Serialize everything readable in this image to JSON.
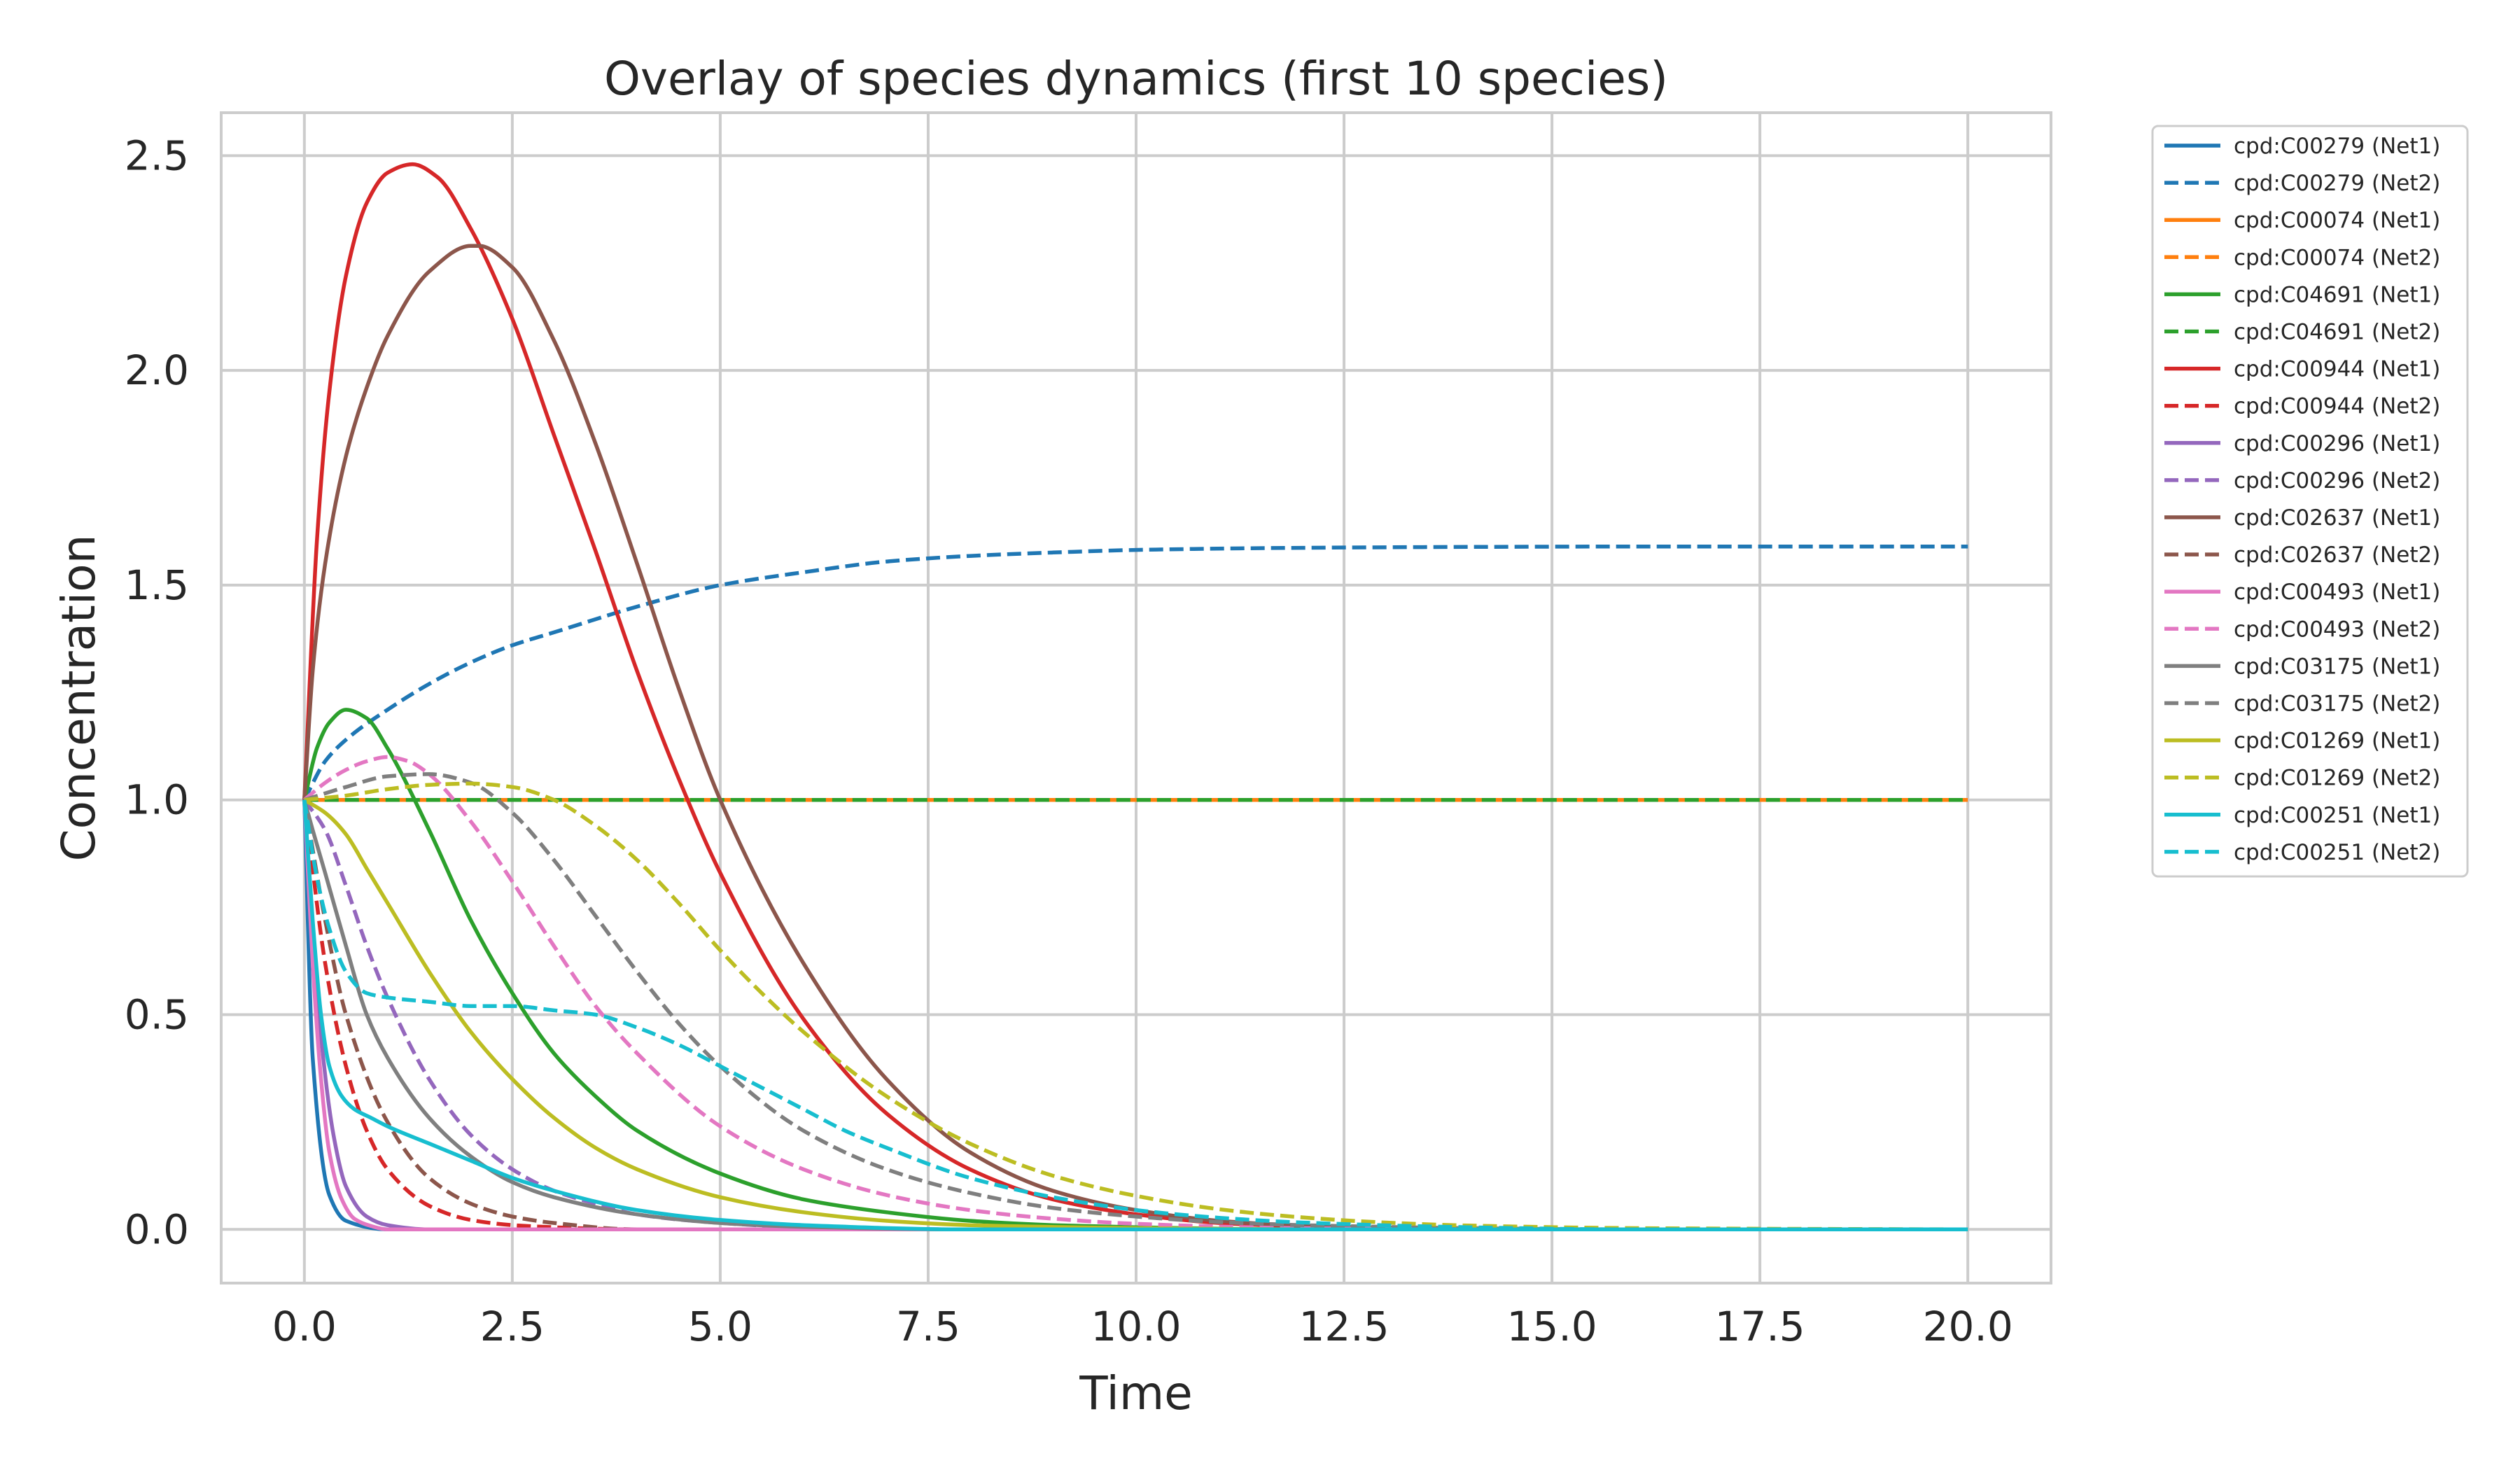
{
  "chart_data": {
    "type": "line",
    "title": "Overlay of species dynamics (first 10 species)",
    "xlabel": "Time",
    "ylabel": "Concentration",
    "xlim": [
      -1.0,
      21.0
    ],
    "ylim": [
      -0.125,
      2.6
    ],
    "xticks": [
      0.0,
      2.5,
      5.0,
      7.5,
      10.0,
      12.5,
      15.0,
      17.5,
      20.0
    ],
    "xtick_labels": [
      "0.0",
      "2.5",
      "5.0",
      "7.5",
      "10.0",
      "12.5",
      "15.0",
      "17.5",
      "20.0"
    ],
    "yticks": [
      0.0,
      0.5,
      1.0,
      1.5,
      2.0,
      2.5
    ],
    "ytick_labels": [
      "0.0",
      "0.5",
      "1.0",
      "1.5",
      "2.0",
      "2.5"
    ],
    "grid": true,
    "legend_position": "outside-upper-right",
    "series": [
      {
        "name": "cpd:C00279 (Net1)",
        "color": "#1f77b4",
        "dash": "solid",
        "x": [
          0,
          0.1,
          0.3,
          0.5,
          1,
          2,
          3,
          5,
          10,
          20
        ],
        "y": [
          1.0,
          0.4,
          0.08,
          0.02,
          0.0,
          0.0,
          0.0,
          0.0,
          0.0,
          0.0
        ]
      },
      {
        "name": "cpd:C00279 (Net2)",
        "color": "#1f77b4",
        "dash": "dashed",
        "x": [
          0,
          0.25,
          0.5,
          1,
          1.5,
          2,
          2.5,
          3,
          4,
          5,
          6,
          7,
          8,
          9,
          10,
          12,
          14,
          16,
          18,
          20
        ],
        "y": [
          1.0,
          1.09,
          1.14,
          1.21,
          1.27,
          1.32,
          1.36,
          1.39,
          1.45,
          1.5,
          1.53,
          1.555,
          1.568,
          1.576,
          1.582,
          1.587,
          1.589,
          1.59,
          1.59,
          1.59
        ]
      },
      {
        "name": "cpd:C00074 (Net1)",
        "color": "#ff7f0e",
        "dash": "solid",
        "x": [
          0,
          20
        ],
        "y": [
          1.0,
          1.0
        ]
      },
      {
        "name": "cpd:C00074 (Net2)",
        "color": "#ff7f0e",
        "dash": "dashed",
        "x": [
          0,
          20
        ],
        "y": [
          1.0,
          1.0
        ]
      },
      {
        "name": "cpd:C04691 (Net1)",
        "color": "#2ca02c",
        "dash": "solid",
        "x": [
          0,
          0.15,
          0.3,
          0.5,
          0.75,
          1,
          1.5,
          2,
          2.5,
          3,
          3.5,
          4,
          5,
          6,
          7,
          8,
          9,
          10,
          12,
          15,
          20
        ],
        "y": [
          1.0,
          1.12,
          1.18,
          1.21,
          1.19,
          1.12,
          0.93,
          0.72,
          0.55,
          0.41,
          0.31,
          0.23,
          0.13,
          0.07,
          0.04,
          0.02,
          0.01,
          0.005,
          0.0,
          0.0,
          0.0
        ]
      },
      {
        "name": "cpd:C04691 (Net2)",
        "color": "#2ca02c",
        "dash": "dashed",
        "x": [
          0,
          20
        ],
        "y": [
          1.0,
          1.0
        ]
      },
      {
        "name": "cpd:C00944 (Net1)",
        "color": "#d62728",
        "dash": "solid",
        "x": [
          0,
          0.15,
          0.3,
          0.5,
          0.75,
          1,
          1.3,
          1.6,
          2,
          2.5,
          3,
          3.5,
          4,
          4.5,
          5,
          6,
          7,
          8,
          9,
          10,
          11,
          12,
          13,
          15,
          20
        ],
        "y": [
          1.0,
          1.6,
          1.95,
          2.22,
          2.39,
          2.46,
          2.48,
          2.45,
          2.33,
          2.12,
          1.85,
          1.58,
          1.3,
          1.05,
          0.83,
          0.49,
          0.27,
          0.14,
          0.07,
          0.035,
          0.015,
          0.007,
          0.003,
          0.0,
          0.0
        ]
      },
      {
        "name": "cpd:C00944 (Net2)",
        "color": "#d62728",
        "dash": "dashed",
        "x": [
          0,
          0.25,
          0.5,
          0.75,
          1,
          1.5,
          2,
          2.5,
          3,
          4,
          5,
          10,
          20
        ],
        "y": [
          1.0,
          0.62,
          0.38,
          0.23,
          0.14,
          0.055,
          0.022,
          0.01,
          0.005,
          0.0,
          0.0,
          0.0,
          0.0
        ]
      },
      {
        "name": "cpd:C00296 (Net1)",
        "color": "#9467bd",
        "dash": "solid",
        "x": [
          0,
          0.1,
          0.2,
          0.35,
          0.5,
          0.75,
          1,
          1.5,
          2,
          3,
          20
        ],
        "y": [
          1.0,
          0.7,
          0.45,
          0.22,
          0.1,
          0.03,
          0.01,
          0.0,
          0.0,
          0.0,
          0.0
        ]
      },
      {
        "name": "cpd:C00296 (Net2)",
        "color": "#9467bd",
        "dash": "dashed",
        "x": [
          0,
          0.25,
          0.5,
          0.75,
          1,
          1.5,
          2,
          2.5,
          3,
          3.5,
          4,
          5,
          6,
          8,
          10,
          20
        ],
        "y": [
          1.0,
          0.93,
          0.8,
          0.66,
          0.54,
          0.35,
          0.22,
          0.14,
          0.09,
          0.06,
          0.035,
          0.015,
          0.005,
          0.0,
          0.0,
          0.0
        ]
      },
      {
        "name": "cpd:C02637 (Net1)",
        "color": "#8c564b",
        "dash": "solid",
        "x": [
          0,
          0.1,
          0.25,
          0.5,
          0.75,
          1,
          1.5,
          2,
          2.1,
          2.5,
          3,
          3.5,
          4,
          4.5,
          5,
          6,
          7,
          8,
          9,
          10,
          11,
          12,
          13,
          14,
          15,
          20
        ],
        "y": [
          1.0,
          1.3,
          1.55,
          1.8,
          1.96,
          2.08,
          2.23,
          2.29,
          2.29,
          2.24,
          2.07,
          1.83,
          1.55,
          1.26,
          1.0,
          0.62,
          0.35,
          0.18,
          0.09,
          0.045,
          0.02,
          0.009,
          0.004,
          0.002,
          0.0,
          0.0
        ]
      },
      {
        "name": "cpd:C02637 (Net2)",
        "color": "#8c564b",
        "dash": "dashed",
        "x": [
          0,
          0.25,
          0.5,
          1,
          1.5,
          2,
          2.5,
          3,
          4,
          20
        ],
        "y": [
          1.0,
          0.72,
          0.5,
          0.25,
          0.12,
          0.06,
          0.03,
          0.015,
          0.0,
          0.0
        ]
      },
      {
        "name": "cpd:C00493 (Net1)",
        "color": "#e377c2",
        "dash": "solid",
        "x": [
          0,
          0.1,
          0.2,
          0.3,
          0.45,
          0.6,
          0.8,
          1.0,
          1.5,
          20
        ],
        "y": [
          1.0,
          0.62,
          0.35,
          0.18,
          0.07,
          0.025,
          0.008,
          0.0,
          0.0,
          0.0
        ]
      },
      {
        "name": "cpd:C00493 (Net2)",
        "color": "#e377c2",
        "dash": "dashed",
        "x": [
          0,
          0.25,
          0.5,
          0.75,
          1,
          1.25,
          1.5,
          2,
          2.5,
          3,
          3.5,
          4,
          5,
          6,
          7,
          8,
          9,
          10,
          12,
          15,
          20
        ],
        "y": [
          1.0,
          1.04,
          1.07,
          1.09,
          1.1,
          1.09,
          1.06,
          0.95,
          0.81,
          0.66,
          0.52,
          0.41,
          0.24,
          0.14,
          0.08,
          0.045,
          0.025,
          0.013,
          0.003,
          0.0,
          0.0
        ]
      },
      {
        "name": "cpd:C03175 (Net1)",
        "color": "#7f7f7f",
        "dash": "solid",
        "x": [
          0,
          0.1,
          0.25,
          0.5,
          0.75,
          1,
          1.5,
          2,
          2.5,
          3,
          4,
          5,
          6,
          8,
          10,
          20
        ],
        "y": [
          1.0,
          0.93,
          0.83,
          0.66,
          0.5,
          0.4,
          0.26,
          0.17,
          0.11,
          0.075,
          0.035,
          0.015,
          0.006,
          0.0,
          0.0,
          0.0
        ]
      },
      {
        "name": "cpd:C03175 (Net2)",
        "color": "#7f7f7f",
        "dash": "dashed",
        "x": [
          0,
          0.5,
          1,
          1.5,
          2,
          2.5,
          3,
          3.5,
          4,
          4.5,
          5,
          6,
          7,
          8,
          9,
          10,
          11,
          12,
          14,
          16,
          20
        ],
        "y": [
          1.0,
          1.03,
          1.055,
          1.06,
          1.04,
          0.97,
          0.86,
          0.73,
          0.6,
          0.48,
          0.38,
          0.23,
          0.14,
          0.085,
          0.05,
          0.03,
          0.017,
          0.01,
          0.003,
          0.0,
          0.0
        ]
      },
      {
        "name": "cpd:C01269 (Net1)",
        "color": "#bcbd22",
        "dash": "solid",
        "x": [
          0,
          0.25,
          0.5,
          0.75,
          1,
          1.5,
          2,
          2.5,
          3,
          3.5,
          4,
          5,
          6,
          7,
          8,
          10,
          12,
          15,
          20
        ],
        "y": [
          1.0,
          0.97,
          0.92,
          0.84,
          0.76,
          0.6,
          0.46,
          0.35,
          0.26,
          0.19,
          0.14,
          0.075,
          0.04,
          0.02,
          0.01,
          0.003,
          0.0,
          0.0,
          0.0
        ]
      },
      {
        "name": "cpd:C01269 (Net2)",
        "color": "#bcbd22",
        "dash": "dashed",
        "x": [
          0,
          0.5,
          1,
          1.5,
          2,
          2.5,
          3,
          3.5,
          4,
          4.5,
          5,
          5.5,
          6,
          7,
          8,
          9,
          10,
          11,
          12,
          13,
          14,
          16,
          20
        ],
        "y": [
          1.0,
          1.01,
          1.025,
          1.035,
          1.038,
          1.03,
          1.0,
          0.94,
          0.86,
          0.76,
          0.65,
          0.55,
          0.46,
          0.31,
          0.2,
          0.125,
          0.078,
          0.047,
          0.028,
          0.016,
          0.009,
          0.003,
          0.0
        ]
      },
      {
        "name": "cpd:C00251 (Net1)",
        "color": "#17becf",
        "dash": "solid",
        "x": [
          0,
          0.1,
          0.2,
          0.3,
          0.45,
          0.6,
          0.8,
          1,
          1.5,
          2,
          2.5,
          3,
          4,
          5,
          6,
          8,
          10,
          12,
          15,
          20
        ],
        "y": [
          1.0,
          0.72,
          0.5,
          0.38,
          0.31,
          0.28,
          0.26,
          0.24,
          0.2,
          0.16,
          0.12,
          0.09,
          0.045,
          0.022,
          0.01,
          0.0,
          0.0,
          0.0,
          0.0,
          0.0
        ]
      },
      {
        "name": "cpd:C00251 (Net2)",
        "color": "#17becf",
        "dash": "dashed",
        "x": [
          0,
          0.15,
          0.3,
          0.5,
          0.75,
          1,
          1.5,
          2,
          2.5,
          3,
          3.5,
          4,
          4.5,
          5,
          5.5,
          6,
          6.5,
          7,
          8,
          9,
          10,
          11,
          12,
          14,
          16,
          20
        ],
        "y": [
          1.0,
          0.82,
          0.7,
          0.6,
          0.55,
          0.54,
          0.53,
          0.52,
          0.52,
          0.51,
          0.5,
          0.47,
          0.43,
          0.38,
          0.33,
          0.28,
          0.23,
          0.19,
          0.12,
          0.075,
          0.045,
          0.027,
          0.016,
          0.005,
          0.0,
          0.0
        ]
      }
    ]
  }
}
